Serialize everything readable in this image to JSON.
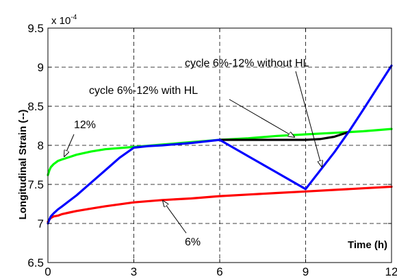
{
  "chart_data": {
    "type": "line",
    "title": "",
    "xlabel": "Time (h)",
    "ylabel": "Longitudinal Strain (--)",
    "y_multiplier": "x 10",
    "y_multiplier_exponent": "-4",
    "xlim": [
      0,
      12
    ],
    "ylim": [
      6.5,
      9.5
    ],
    "x_ticks": [
      "0",
      "3",
      "6",
      "9",
      "12"
    ],
    "y_ticks": [
      "6.5",
      "7",
      "7.5",
      "8",
      "8.5",
      "9",
      "9.5"
    ],
    "grid": true,
    "series": [
      {
        "name": "12%",
        "color": "#00ff00",
        "x": [
          0,
          0.05,
          0.1,
          0.2,
          0.35,
          0.5,
          0.75,
          1,
          1.5,
          2,
          3,
          4,
          5,
          6,
          7,
          8,
          9,
          10,
          11,
          12
        ],
        "y": [
          7.62,
          7.68,
          7.72,
          7.76,
          7.8,
          7.82,
          7.85,
          7.88,
          7.92,
          7.95,
          7.98,
          8.01,
          8.04,
          8.07,
          8.09,
          8.12,
          8.14,
          8.16,
          8.18,
          8.21
        ]
      },
      {
        "name": "6%",
        "color": "#ff0000",
        "x": [
          0,
          0.05,
          0.1,
          0.2,
          0.35,
          0.5,
          0.75,
          1,
          1.5,
          2,
          3,
          4,
          5,
          6,
          7,
          8,
          9,
          10,
          11,
          12
        ],
        "y": [
          7.02,
          7.05,
          7.07,
          7.09,
          7.1,
          7.12,
          7.14,
          7.16,
          7.19,
          7.22,
          7.27,
          7.3,
          7.32,
          7.35,
          7.37,
          7.39,
          7.41,
          7.43,
          7.45,
          7.47
        ]
      },
      {
        "name": "cycle 6%-12% with HL",
        "color": "#000000",
        "x": [
          6,
          7,
          8,
          9,
          9.5,
          10,
          10.5
        ],
        "y": [
          8.07,
          8.07,
          8.07,
          8.07,
          8.08,
          8.11,
          8.17
        ]
      },
      {
        "name": "cycle 6%-12% without HL",
        "color": "#0000ff",
        "x": [
          0,
          0.05,
          0.1,
          0.2,
          0.35,
          0.5,
          0.75,
          1,
          1.5,
          2,
          2.5,
          3,
          3.5,
          4,
          5,
          6,
          7,
          8,
          9,
          10,
          10.5,
          11,
          12
        ],
        "y": [
          7.0,
          7.05,
          7.09,
          7.13,
          7.18,
          7.22,
          7.29,
          7.36,
          7.52,
          7.68,
          7.84,
          7.97,
          7.99,
          8.0,
          8.03,
          8.07,
          7.86,
          7.65,
          7.44,
          7.91,
          8.17,
          8.45,
          9.02
        ]
      }
    ],
    "annotations": [
      {
        "id": "anno-without-hl",
        "text": "cycle 6%-12% without HL",
        "x": 9.4,
        "y": 9.0
      },
      {
        "id": "anno-with-hl",
        "text": "cycle 6%-12% with HL",
        "x": 7.0,
        "y": 8.7
      },
      {
        "id": "anno-12",
        "text": "12%",
        "x": 0.8,
        "y": 8.25
      },
      {
        "id": "anno-6",
        "text": "6%",
        "x": 5.0,
        "y": 6.95
      }
    ]
  }
}
